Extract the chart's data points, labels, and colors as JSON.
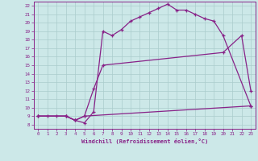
{
  "xlabel": "Windchill (Refroidissement éolien,°C)",
  "background_color": "#cce8e8",
  "grid_color": "#aacccc",
  "line_color": "#882288",
  "xlim": [
    -0.5,
    23.5
  ],
  "ylim": [
    7.5,
    22.5
  ],
  "xticks": [
    0,
    1,
    2,
    3,
    4,
    5,
    6,
    7,
    8,
    9,
    10,
    11,
    12,
    13,
    14,
    15,
    16,
    17,
    18,
    19,
    20,
    21,
    22,
    23
  ],
  "yticks": [
    8,
    9,
    10,
    11,
    12,
    13,
    14,
    15,
    16,
    17,
    18,
    19,
    20,
    21,
    22
  ],
  "line1_x": [
    0,
    1,
    2,
    3,
    4,
    5,
    6,
    7,
    8,
    9,
    10,
    11,
    12,
    13,
    14,
    15,
    16,
    17,
    18,
    19,
    20,
    23
  ],
  "line1_y": [
    9,
    9,
    9,
    9,
    8.5,
    8.2,
    9.5,
    19.0,
    18.5,
    19.2,
    20.2,
    20.7,
    21.2,
    21.7,
    22.2,
    21.5,
    21.5,
    21.0,
    20.5,
    20.2,
    18.5,
    10.2
  ],
  "line2_x": [
    0,
    3,
    4,
    5,
    6,
    7,
    20,
    22,
    23
  ],
  "line2_y": [
    9,
    9,
    8.5,
    9,
    12.2,
    15.0,
    16.5,
    18.5,
    12.0
  ],
  "line3_x": [
    0,
    3,
    4,
    5,
    23
  ],
  "line3_y": [
    9,
    9,
    8.5,
    9.0,
    10.2
  ],
  "tick_fontsize": 4.2,
  "xlabel_fontsize": 5.0
}
